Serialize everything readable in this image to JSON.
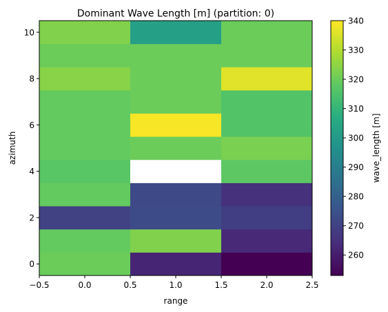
{
  "chart_data": {
    "type": "heatmap",
    "title": "Dominant Wave Length [m] (partition: 0)",
    "xlabel": "range",
    "ylabel": "azimuth",
    "xlim": [
      -0.5,
      2.5
    ],
    "ylim": [
      -0.5,
      10.5
    ],
    "x": [
      0,
      1,
      2
    ],
    "y": [
      0,
      1,
      2,
      3,
      4,
      5,
      6,
      7,
      8,
      9,
      10
    ],
    "x_ticks": [
      -0.5,
      0.0,
      0.5,
      1.0,
      1.5,
      2.0,
      2.5
    ],
    "x_tick_labels": [
      "−0.5",
      "0.0",
      "0.5",
      "1.0",
      "1.5",
      "2.0",
      "2.5"
    ],
    "y_ticks": [
      0,
      2,
      4,
      6,
      8,
      10
    ],
    "y_tick_labels": [
      "0",
      "2",
      "4",
      "6",
      "8",
      "10"
    ],
    "values": [
      [
        320,
        262,
        253
      ],
      [
        319,
        323,
        263
      ],
      [
        270,
        273,
        269
      ],
      [
        319,
        272,
        265
      ],
      [
        317,
        null,
        318
      ],
      [
        319,
        320,
        322
      ],
      [
        319,
        339,
        316
      ],
      [
        319,
        320,
        316
      ],
      [
        324,
        320,
        336
      ],
      [
        320,
        320,
        320
      ],
      [
        323,
        302,
        320
      ]
    ],
    "colorbar": {
      "label": "wave_length [m]",
      "colormap": "viridis",
      "range": [
        253,
        340
      ],
      "ticks": [
        260,
        270,
        280,
        290,
        300,
        310,
        320,
        330,
        340
      ],
      "tick_labels": [
        "260",
        "270",
        "280",
        "290",
        "300",
        "310",
        "320",
        "330",
        "340"
      ]
    },
    "missing_color": "#ffffff",
    "grid": false
  }
}
